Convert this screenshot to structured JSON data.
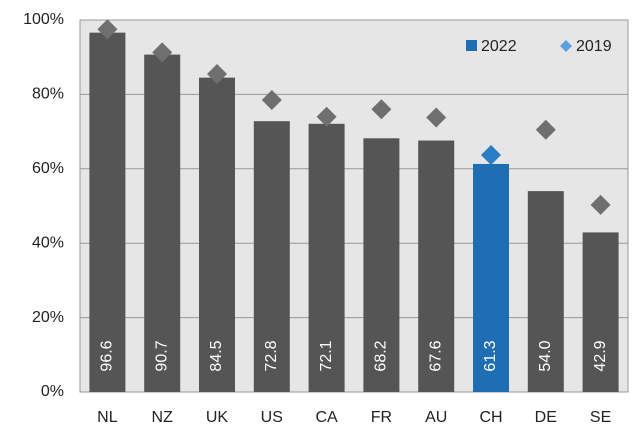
{
  "chart_data": {
    "type": "bar",
    "categories": [
      "NL",
      "NZ",
      "UK",
      "US",
      "CA",
      "FR",
      "AU",
      "CH",
      "DE",
      "SE"
    ],
    "series": [
      {
        "name": "2022",
        "color": "#1f6db3",
        "colors": [
          "#555555",
          "#555555",
          "#555555",
          "#555555",
          "#555555",
          "#555555",
          "#555555",
          "#1f6db3",
          "#555555",
          "#555555"
        ],
        "values": [
          96.6,
          90.7,
          84.5,
          72.8,
          72.1,
          68.2,
          67.6,
          61.3,
          54.0,
          42.9
        ],
        "value_labels": [
          "96.6",
          "90.7",
          "84.5",
          "72.8",
          "72.1",
          "68.2",
          "67.6",
          "61.3",
          "54.0",
          "42.9"
        ]
      },
      {
        "name": "2019",
        "color": "#5aa0dc",
        "marker": "diamond",
        "colors": [
          "#6f6f6f",
          "#6f6f6f",
          "#6f6f6f",
          "#6f6f6f",
          "#6f6f6f",
          "#6f6f6f",
          "#6f6f6f",
          "#2a7cc7",
          "#6f6f6f",
          "#6f6f6f"
        ],
        "values": [
          97.5,
          91.3,
          85.5,
          78.5,
          74.0,
          76.0,
          73.8,
          63.7,
          70.5,
          50.3
        ]
      }
    ],
    "ylim": [
      0,
      100
    ],
    "yticks": [
      {
        "value": 0,
        "label": "0%"
      },
      {
        "value": 20,
        "label": "20%"
      },
      {
        "value": 40,
        "label": "40%"
      },
      {
        "value": 60,
        "label": "60%"
      },
      {
        "value": 80,
        "label": "80%"
      },
      {
        "value": 100,
        "label": "100%"
      }
    ],
    "grid": true,
    "legend": "top-right"
  }
}
